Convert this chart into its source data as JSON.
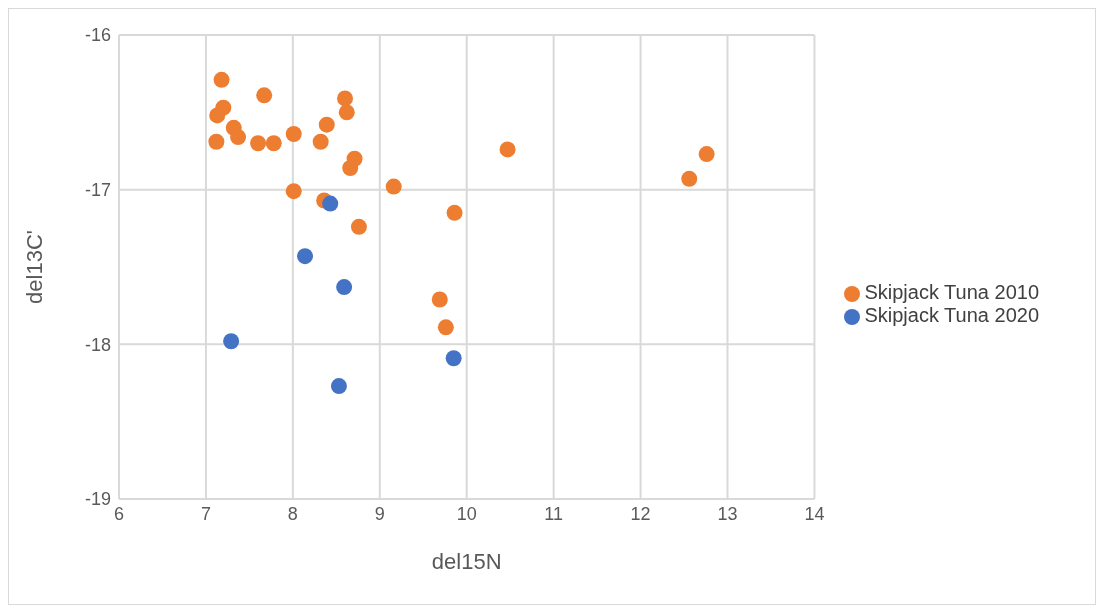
{
  "chart_data": {
    "type": "scatter",
    "xlabel": "del15N",
    "ylabel": "del13C'",
    "xlim": [
      6,
      14
    ],
    "xticks": [
      6,
      7,
      8,
      9,
      10,
      11,
      12,
      13,
      14
    ],
    "ylim": [
      -19,
      -16
    ],
    "yticks": [
      -19,
      -18,
      -17,
      -16
    ],
    "grid": true,
    "legend": "right",
    "marker": "circle",
    "series": [
      {
        "name": "Skipjack Tuna 2010",
        "color": "#ed7d31",
        "x": [
          7.18,
          7.13,
          7.2,
          7.32,
          7.37,
          7.12,
          7.67,
          7.6,
          7.78,
          8.01,
          8.32,
          8.39,
          8.6,
          8.62,
          8.71,
          8.66,
          8.01,
          8.36,
          8.76,
          9.16,
          9.86,
          10.47,
          12.56,
          12.76,
          9.69,
          9.76
        ],
        "values": [
          -16.29,
          -16.52,
          -16.47,
          -16.6,
          -16.66,
          -16.69,
          -16.39,
          -16.7,
          -16.7,
          -16.64,
          -16.69,
          -16.58,
          -16.41,
          -16.5,
          -16.8,
          -16.86,
          -17.01,
          -17.07,
          -17.24,
          -16.98,
          -17.15,
          -16.74,
          -16.93,
          -16.77,
          -17.71,
          -17.89
        ]
      },
      {
        "name": "Skipjack Tuna 2020",
        "color": "#4472c4",
        "x": [
          8.43,
          8.14,
          8.59,
          7.29,
          8.53,
          9.85
        ],
        "values": [
          -17.09,
          -17.43,
          -17.63,
          -17.98,
          -18.27,
          -18.09
        ]
      }
    ]
  }
}
